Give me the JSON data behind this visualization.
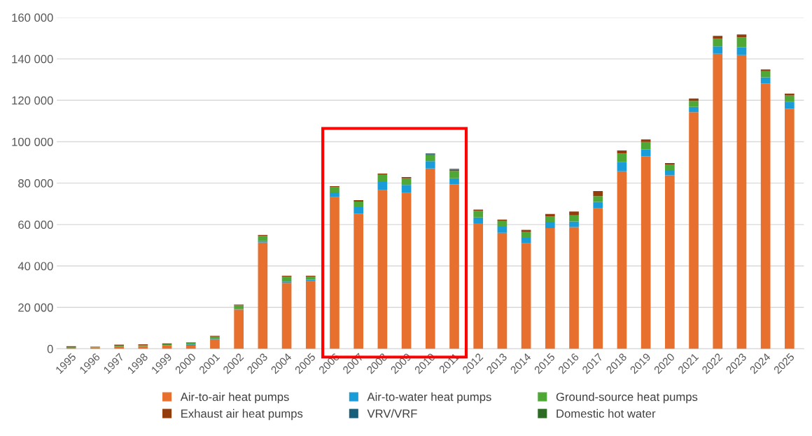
{
  "chart_data": {
    "type": "bar",
    "stacked": true,
    "categories": [
      "1995",
      "1996",
      "1997",
      "1998",
      "1999",
      "2000",
      "2001",
      "2002",
      "2003",
      "2004",
      "2005",
      "2006",
      "2007",
      "2008",
      "2009",
      "2010",
      "2011",
      "2012",
      "2013",
      "2014",
      "2015",
      "2016",
      "2017",
      "2018",
      "2019",
      "2020",
      "2021",
      "2022",
      "2023",
      "2024",
      "2025"
    ],
    "series": [
      {
        "name": "Air-to-air heat pumps",
        "color": "#e8702e",
        "values": [
          500,
          700,
          1200,
          1300,
          1600,
          1500,
          4600,
          19000,
          51300,
          31800,
          32700,
          73200,
          65200,
          76600,
          75200,
          87100,
          79400,
          60600,
          56000,
          50900,
          58300,
          58800,
          67800,
          85700,
          93000,
          83800,
          114300,
          142500,
          141800,
          128000,
          115900
        ]
      },
      {
        "name": "Air-to-water heat pumps",
        "color": "#1a9cd8",
        "values": [
          0,
          0,
          0,
          0,
          0,
          600,
          200,
          300,
          700,
          700,
          700,
          2300,
          3200,
          4000,
          3900,
          3500,
          2900,
          2800,
          2900,
          2600,
          3000,
          2700,
          3100,
          4600,
          3300,
          2500,
          2500,
          3500,
          3800,
          3100,
          3400
        ]
      },
      {
        "name": "Ground-source heat pumps",
        "color": "#4fa836",
        "values": [
          200,
          200,
          300,
          500,
          600,
          900,
          1200,
          1600,
          2400,
          2300,
          1400,
          2500,
          2700,
          3400,
          3200,
          2900,
          3600,
          3200,
          2800,
          3100,
          2500,
          2900,
          2800,
          4000,
          3600,
          2500,
          2900,
          3700,
          4800,
          2900,
          3000
        ]
      },
      {
        "name": "Exhaust air heat pumps",
        "color": "#933c0c",
        "values": [
          500,
          200,
          500,
          400,
          400,
          200,
          300,
          400,
          600,
          500,
          500,
          500,
          700,
          600,
          600,
          300,
          600,
          600,
          700,
          800,
          1300,
          1900,
          2500,
          1500,
          1200,
          900,
          1200,
          1400,
          1400,
          900,
          900
        ]
      },
      {
        "name": "VRV/VRF",
        "color": "#1a5f7a",
        "values": [
          0,
          0,
          0,
          0,
          0,
          0,
          0,
          0,
          0,
          0,
          0,
          0,
          0,
          0,
          0,
          500,
          400,
          0,
          0,
          0,
          0,
          0,
          0,
          0,
          0,
          0,
          0,
          0,
          0,
          0,
          0
        ]
      },
      {
        "name": "Domestic hot water",
        "color": "#2e6b25",
        "values": [
          0,
          0,
          0,
          0,
          0,
          0,
          0,
          0,
          0,
          0,
          0,
          0,
          0,
          0,
          0,
          0,
          0,
          0,
          0,
          0,
          0,
          0,
          0,
          0,
          0,
          0,
          0,
          0,
          0,
          0,
          0
        ]
      }
    ],
    "ylim": [
      0,
      160000
    ],
    "yticks": [
      {
        "value": 0,
        "label": "0"
      },
      {
        "value": 20000,
        "label": "20 000"
      },
      {
        "value": 40000,
        "label": "40 000"
      },
      {
        "value": 60000,
        "label": "60 000"
      },
      {
        "value": 80000,
        "label": "80 000"
      },
      {
        "value": 100000,
        "label": "100 000"
      },
      {
        "value": 120000,
        "label": "120 000"
      },
      {
        "value": 140000,
        "label": "140 000"
      },
      {
        "value": 160000,
        "label": "160 000"
      }
    ],
    "grid": "y",
    "legend": "bottom"
  }
}
